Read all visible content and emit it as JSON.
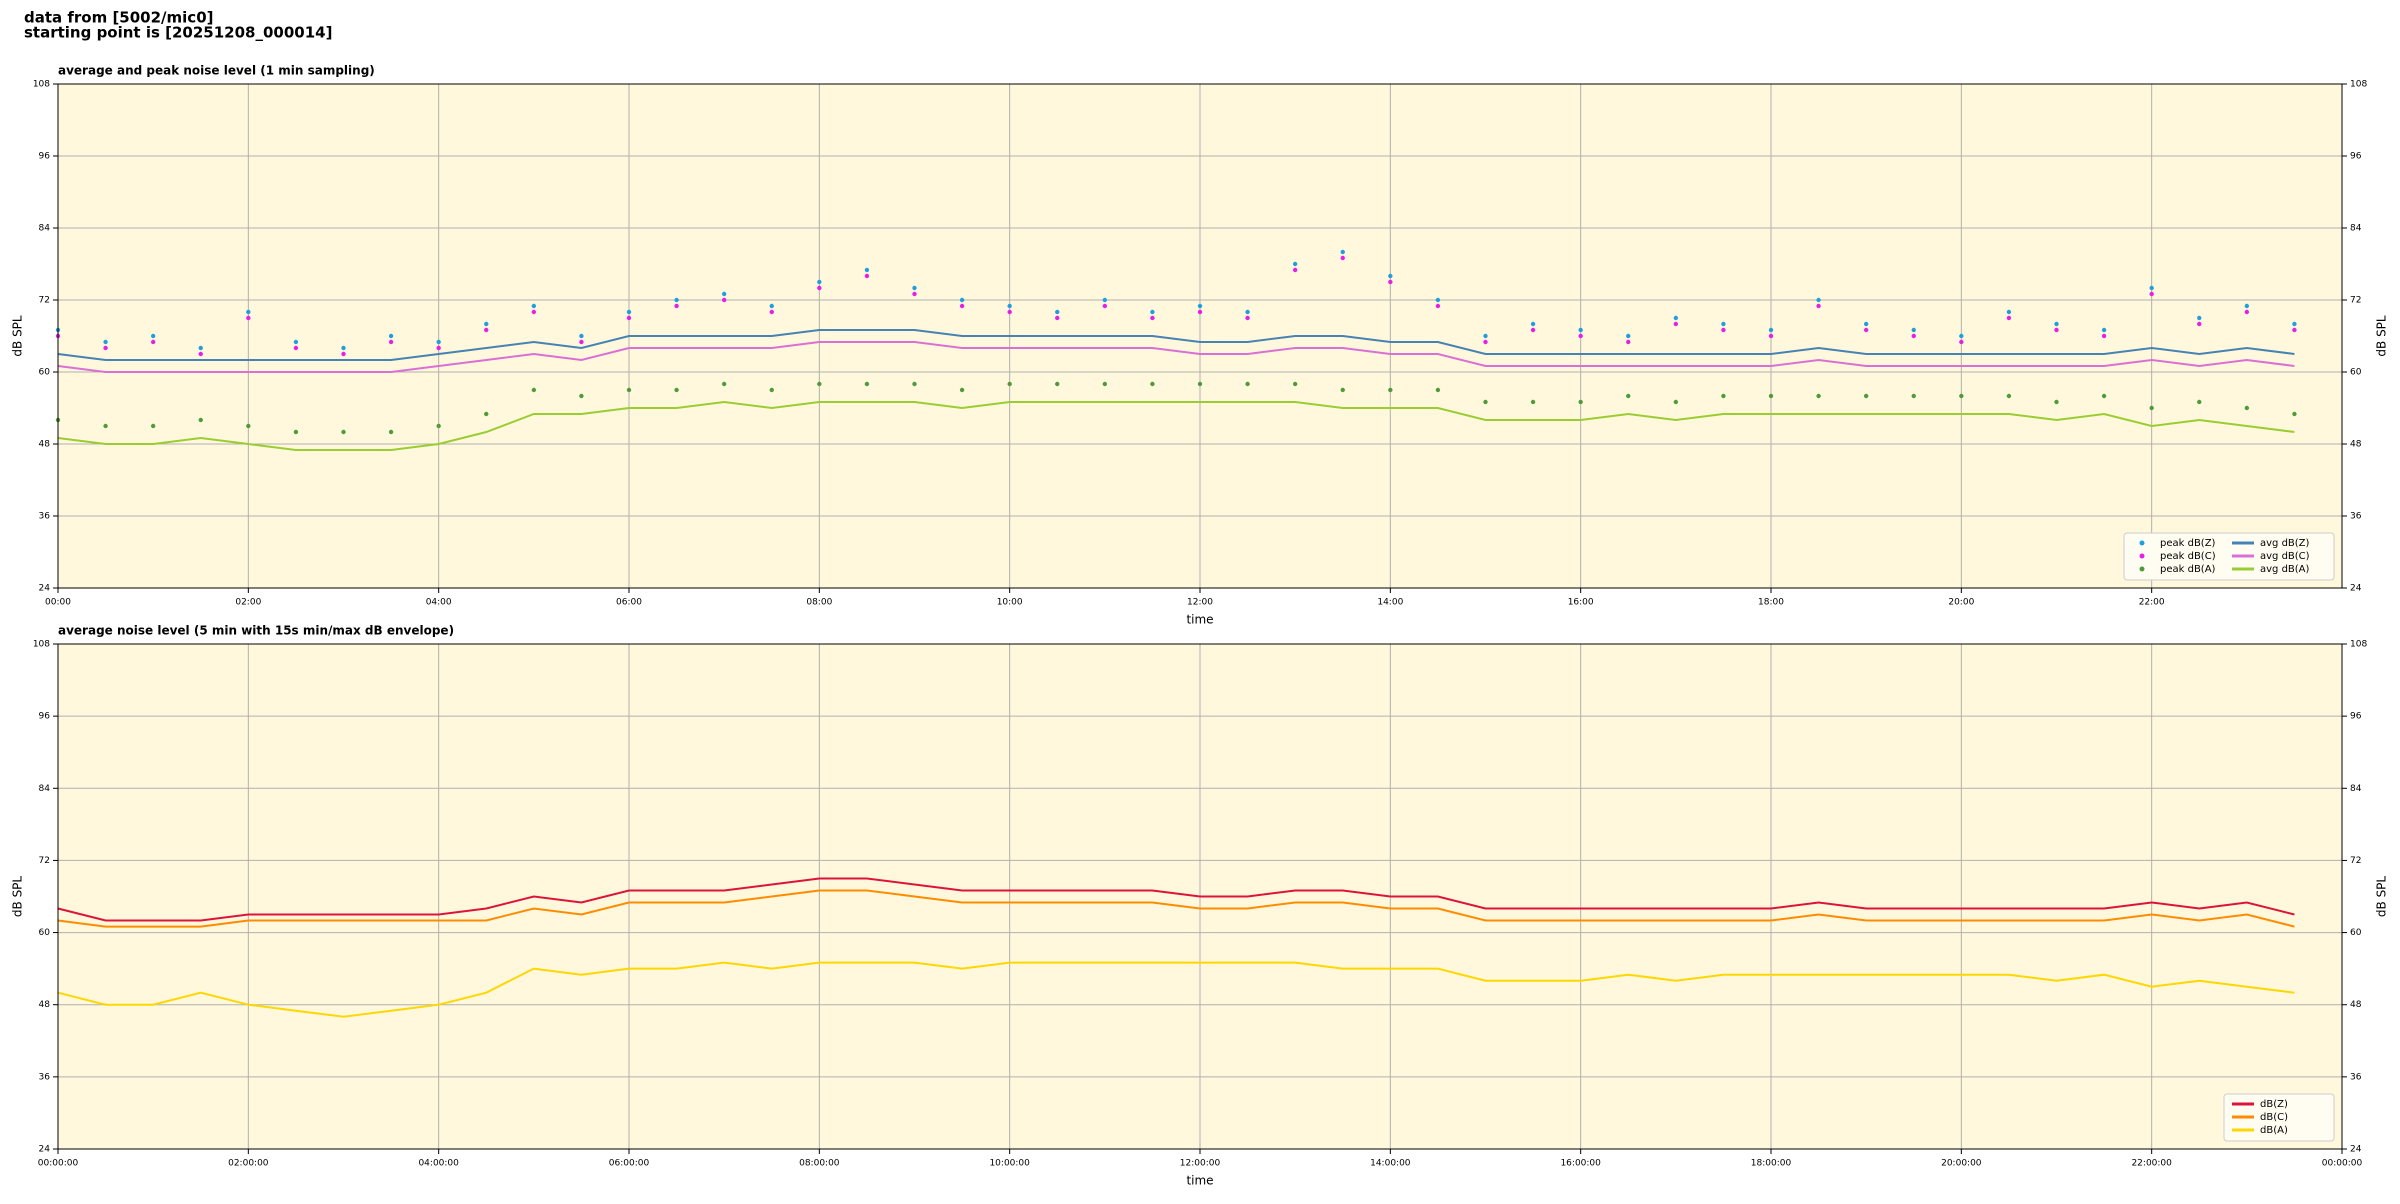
{
  "header": {
    "lines": [
      "data from [5002/mic0]",
      "starting point is [20251208_000014]"
    ]
  },
  "chart_data": [
    {
      "type": "line",
      "title": "average and peak noise level (1 min sampling)",
      "xlabel": "time",
      "ylabel": "dB SPL",
      "x": [
        0,
        0.5,
        1,
        1.5,
        2,
        2.5,
        3,
        3.5,
        4,
        4.5,
        5,
        5.5,
        6,
        6.5,
        7,
        7.5,
        8,
        8.5,
        9,
        9.5,
        10,
        10.5,
        11,
        11.5,
        12,
        12.5,
        13,
        13.5,
        14,
        14.5,
        15,
        15.5,
        16,
        16.5,
        17,
        17.5,
        18,
        18.5,
        19,
        19.5,
        20,
        20.5,
        21,
        21.5,
        22,
        22.5,
        23,
        23.5
      ],
      "xlim": [
        0,
        24
      ],
      "xticks": [
        {
          "value": 0,
          "label": "00:00"
        },
        {
          "value": 2,
          "label": "02:00"
        },
        {
          "value": 4,
          "label": "04:00"
        },
        {
          "value": 6,
          "label": "06:00"
        },
        {
          "value": 8,
          "label": "08:00"
        },
        {
          "value": 10,
          "label": "10:00"
        },
        {
          "value": 12,
          "label": "12:00"
        },
        {
          "value": 14,
          "label": "14:00"
        },
        {
          "value": 16,
          "label": "16:00"
        },
        {
          "value": 18,
          "label": "18:00"
        },
        {
          "value": 20,
          "label": "20:00"
        },
        {
          "value": 22,
          "label": "22:00"
        }
      ],
      "ylim": [
        24,
        108
      ],
      "yticks": [
        24,
        36,
        48,
        60,
        72,
        84,
        96,
        108
      ],
      "grid": true,
      "legend": "lower right",
      "series": [
        {
          "name": "peak dB(Z)",
          "type": "scatter",
          "color": "#1f9fe0",
          "values": [
            67,
            65,
            66,
            64,
            70,
            65,
            64,
            66,
            65,
            68,
            71,
            66,
            70,
            72,
            73,
            71,
            75,
            77,
            74,
            72,
            71,
            70,
            72,
            70,
            71,
            70,
            78,
            80,
            76,
            72,
            66,
            68,
            67,
            66,
            69,
            68,
            67,
            72,
            68,
            67,
            66,
            70,
            68,
            67,
            74,
            69,
            71,
            68
          ]
        },
        {
          "name": "peak dB(C)",
          "type": "scatter",
          "color": "#e81ee8",
          "values": [
            66,
            64,
            65,
            63,
            69,
            64,
            63,
            65,
            64,
            67,
            70,
            65,
            69,
            71,
            72,
            70,
            74,
            76,
            73,
            71,
            70,
            69,
            71,
            69,
            70,
            69,
            77,
            79,
            75,
            71,
            65,
            67,
            66,
            65,
            68,
            67,
            66,
            71,
            67,
            66,
            65,
            69,
            67,
            66,
            73,
            68,
            70,
            67
          ]
        },
        {
          "name": "peak dB(A)",
          "type": "scatter",
          "color": "#4f9a3a",
          "values": [
            52,
            51,
            51,
            52,
            51,
            50,
            50,
            50,
            51,
            53,
            57,
            56,
            57,
            57,
            58,
            57,
            58,
            58,
            58,
            57,
            58,
            58,
            58,
            58,
            58,
            58,
            58,
            57,
            57,
            57,
            55,
            55,
            55,
            56,
            55,
            56,
            56,
            56,
            56,
            56,
            56,
            56,
            55,
            56,
            54,
            55,
            54,
            53
          ]
        },
        {
          "name": "avg dB(Z)",
          "type": "line",
          "color": "#4682b4",
          "values": [
            63,
            62,
            62,
            62,
            62,
            62,
            62,
            62,
            63,
            64,
            65,
            64,
            66,
            66,
            66,
            66,
            67,
            67,
            67,
            66,
            66,
            66,
            66,
            66,
            65,
            65,
            66,
            66,
            65,
            65,
            63,
            63,
            63,
            63,
            63,
            63,
            63,
            64,
            63,
            63,
            63,
            63,
            63,
            63,
            64,
            63,
            64,
            63
          ]
        },
        {
          "name": "avg dB(C)",
          "type": "line",
          "color": "#da70d6",
          "values": [
            61,
            60,
            60,
            60,
            60,
            60,
            60,
            60,
            61,
            62,
            63,
            62,
            64,
            64,
            64,
            64,
            65,
            65,
            65,
            64,
            64,
            64,
            64,
            64,
            63,
            63,
            64,
            64,
            63,
            63,
            61,
            61,
            61,
            61,
            61,
            61,
            61,
            62,
            61,
            61,
            61,
            61,
            61,
            61,
            62,
            61,
            62,
            61
          ]
        },
        {
          "name": "avg dB(A)",
          "type": "line",
          "color": "#9acd32",
          "values": [
            49,
            48,
            48,
            49,
            48,
            47,
            47,
            47,
            48,
            50,
            53,
            53,
            54,
            54,
            55,
            54,
            55,
            55,
            55,
            54,
            55,
            55,
            55,
            55,
            55,
            55,
            55,
            54,
            54,
            54,
            52,
            52,
            52,
            53,
            52,
            53,
            53,
            53,
            53,
            53,
            53,
            53,
            52,
            53,
            51,
            52,
            51,
            50
          ]
        }
      ]
    },
    {
      "type": "line",
      "title": "average noise level (5 min with 15s min/max dB envelope)",
      "xlabel": "time",
      "ylabel": "dB SPL",
      "x": [
        0,
        0.5,
        1,
        1.5,
        2,
        2.5,
        3,
        3.5,
        4,
        4.5,
        5,
        5.5,
        6,
        6.5,
        7,
        7.5,
        8,
        8.5,
        9,
        9.5,
        10,
        10.5,
        11,
        11.5,
        12,
        12.5,
        13,
        13.5,
        14,
        14.5,
        15,
        15.5,
        16,
        16.5,
        17,
        17.5,
        18,
        18.5,
        19,
        19.5,
        20,
        20.5,
        21,
        21.5,
        22,
        22.5,
        23,
        23.5
      ],
      "xlim": [
        0,
        24
      ],
      "xticks": [
        {
          "value": 0,
          "label": "00:00:00"
        },
        {
          "value": 2,
          "label": "02:00:00"
        },
        {
          "value": 4,
          "label": "04:00:00"
        },
        {
          "value": 6,
          "label": "06:00:00"
        },
        {
          "value": 8,
          "label": "08:00:00"
        },
        {
          "value": 10,
          "label": "10:00:00"
        },
        {
          "value": 12,
          "label": "12:00:00"
        },
        {
          "value": 14,
          "label": "14:00:00"
        },
        {
          "value": 16,
          "label": "16:00:00"
        },
        {
          "value": 18,
          "label": "18:00:00"
        },
        {
          "value": 20,
          "label": "20:00:00"
        },
        {
          "value": 22,
          "label": "22:00:00"
        },
        {
          "value": 24,
          "label": "00:00:00"
        }
      ],
      "ylim": [
        24,
        108
      ],
      "yticks": [
        24,
        36,
        48,
        60,
        72,
        84,
        96,
        108
      ],
      "grid": true,
      "legend": "lower right",
      "series": [
        {
          "name": "dB(Z)",
          "type": "line",
          "color": "#dc143c",
          "values": [
            64,
            62,
            62,
            62,
            63,
            63,
            63,
            63,
            63,
            64,
            66,
            65,
            67,
            67,
            67,
            68,
            69,
            69,
            68,
            67,
            67,
            67,
            67,
            67,
            66,
            66,
            67,
            67,
            66,
            66,
            64,
            64,
            64,
            64,
            64,
            64,
            64,
            65,
            64,
            64,
            64,
            64,
            64,
            64,
            65,
            64,
            65,
            63
          ]
        },
        {
          "name": "dB(C)",
          "type": "line",
          "color": "#ff8c00",
          "values": [
            62,
            61,
            61,
            61,
            62,
            62,
            62,
            62,
            62,
            62,
            64,
            63,
            65,
            65,
            65,
            66,
            67,
            67,
            66,
            65,
            65,
            65,
            65,
            65,
            64,
            64,
            65,
            65,
            64,
            64,
            62,
            62,
            62,
            62,
            62,
            62,
            62,
            63,
            62,
            62,
            62,
            62,
            62,
            62,
            63,
            62,
            63,
            61
          ]
        },
        {
          "name": "dB(A)",
          "type": "line",
          "color": "#ffd700",
          "values": [
            50,
            48,
            48,
            50,
            48,
            47,
            46,
            47,
            48,
            50,
            54,
            53,
            54,
            54,
            55,
            54,
            55,
            55,
            55,
            54,
            55,
            55,
            55,
            55,
            55,
            55,
            55,
            54,
            54,
            54,
            52,
            52,
            52,
            53,
            52,
            53,
            53,
            53,
            53,
            53,
            53,
            53,
            52,
            53,
            51,
            52,
            51,
            50
          ]
        }
      ]
    }
  ]
}
